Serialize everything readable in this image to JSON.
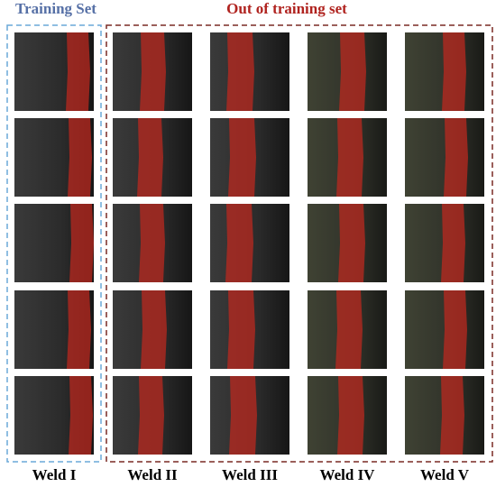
{
  "header": {
    "training_label": "Training Set",
    "out_label": "Out of training set"
  },
  "columns": [
    {
      "label": "Weld I"
    },
    {
      "label": "Weld II"
    },
    {
      "label": "Weld III"
    },
    {
      "label": "Weld IV"
    },
    {
      "label": "Weld V"
    }
  ]
}
